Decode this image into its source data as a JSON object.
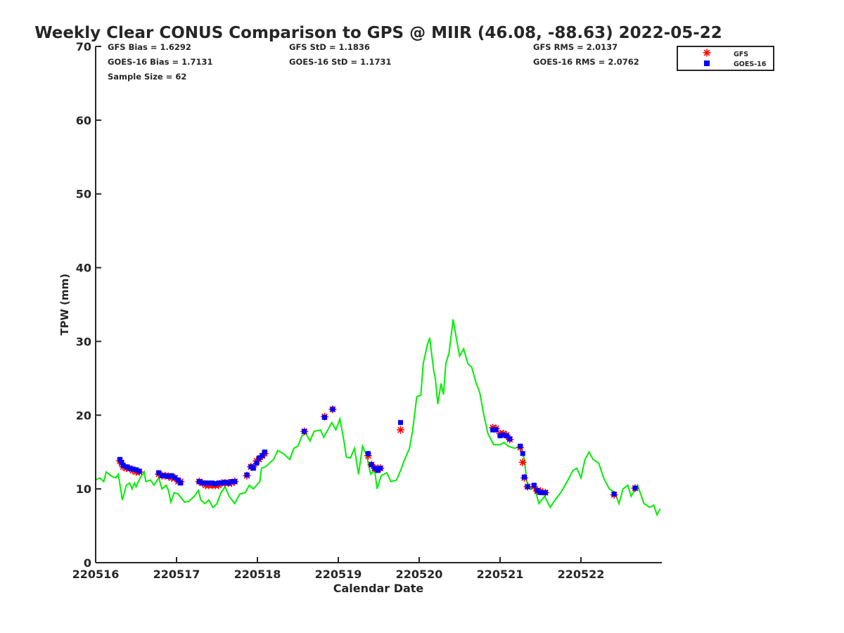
{
  "chart_data": {
    "type": "line",
    "title": "Weekly Clear CONUS Comparison to GPS @ MIIR (46.08, -88.63) 2022-05-22",
    "xlabel": "Calendar Date",
    "ylabel": "TPW (mm)",
    "xlim": [
      0,
      7
    ],
    "ylim": [
      0,
      70
    ],
    "x_ticks": [
      0,
      1,
      2,
      3,
      4,
      5,
      6
    ],
    "x_tick_labels": [
      "220516",
      "220517",
      "220518",
      "220519",
      "220520",
      "220521",
      "220522"
    ],
    "y_ticks": [
      0,
      10,
      20,
      30,
      40,
      50,
      60,
      70
    ],
    "y_tick_labels": [
      "0",
      "10",
      "20",
      "30",
      "40",
      "50",
      "60",
      "70"
    ],
    "x_units": "days since 220516",
    "stats": [
      {
        "label": "GFS Bias = 1.6292"
      },
      {
        "label": "GFS StD = 1.1836"
      },
      {
        "label": "GFS RMS = 2.0137"
      },
      {
        "label": "GOES-16 Bias = 1.7131"
      },
      {
        "label": "GOES-16 StD = 1.1731"
      },
      {
        "label": "GOES-16 RMS = 2.0762"
      },
      {
        "label": "Sample Size = 62"
      }
    ],
    "legend": {
      "placement": "top-right",
      "entries": [
        "GFS",
        "GOES-16"
      ]
    },
    "colors": {
      "gps": "#00ee00",
      "gfs": "#ff0000",
      "goes": "#0000ff"
    },
    "gps_line": [
      [
        0,
        11.2
      ],
      [
        0.05,
        11.5
      ],
      [
        0.1,
        11.0
      ],
      [
        0.13,
        12.3
      ],
      [
        0.2,
        11.7
      ],
      [
        0.25,
        11.5
      ],
      [
        0.28,
        12.0
      ],
      [
        0.33,
        8.5
      ],
      [
        0.38,
        10.5
      ],
      [
        0.42,
        10.8
      ],
      [
        0.45,
        10.0
      ],
      [
        0.48,
        10.8
      ],
      [
        0.5,
        10.3
      ],
      [
        0.55,
        11.5
      ],
      [
        0.6,
        12.3
      ],
      [
        0.62,
        11.0
      ],
      [
        0.68,
        11.2
      ],
      [
        0.72,
        10.5
      ],
      [
        0.78,
        11.5
      ],
      [
        0.82,
        10.0
      ],
      [
        0.87,
        10.5
      ],
      [
        0.9,
        9.8
      ],
      [
        0.93,
        8.2
      ],
      [
        0.97,
        9.5
      ],
      [
        1.02,
        9.3
      ],
      [
        1.1,
        8.2
      ],
      [
        1.15,
        8.3
      ],
      [
        1.22,
        9.0
      ],
      [
        1.27,
        9.8
      ],
      [
        1.3,
        8.5
      ],
      [
        1.35,
        8.0
      ],
      [
        1.4,
        8.5
      ],
      [
        1.45,
        7.5
      ],
      [
        1.5,
        8.0
      ],
      [
        1.55,
        9.5
      ],
      [
        1.6,
        10.3
      ],
      [
        1.65,
        9.0
      ],
      [
        1.72,
        8.0
      ],
      [
        1.78,
        9.3
      ],
      [
        1.85,
        9.5
      ],
      [
        1.9,
        10.5
      ],
      [
        1.95,
        10.0
      ],
      [
        2.03,
        11.0
      ],
      [
        2.05,
        12.8
      ],
      [
        2.1,
        13.0
      ],
      [
        2.15,
        13.5
      ],
      [
        2.2,
        14.0
      ],
      [
        2.25,
        15.2
      ],
      [
        2.32,
        14.8
      ],
      [
        2.4,
        14.0
      ],
      [
        2.45,
        15.5
      ],
      [
        2.5,
        15.8
      ],
      [
        2.55,
        17.2
      ],
      [
        2.6,
        17.5
      ],
      [
        2.65,
        16.5
      ],
      [
        2.7,
        17.8
      ],
      [
        2.78,
        18.0
      ],
      [
        2.82,
        17.0
      ],
      [
        2.87,
        18.0
      ],
      [
        2.92,
        19.0
      ],
      [
        2.97,
        18.0
      ],
      [
        3.02,
        19.5
      ],
      [
        3.07,
        16.5
      ],
      [
        3.1,
        14.3
      ],
      [
        3.15,
        14.2
      ],
      [
        3.2,
        15.5
      ],
      [
        3.25,
        12.0
      ],
      [
        3.3,
        15.8
      ],
      [
        3.35,
        14.5
      ],
      [
        3.4,
        12.0
      ],
      [
        3.45,
        12.5
      ],
      [
        3.48,
        10.0
      ],
      [
        3.53,
        11.8
      ],
      [
        3.6,
        12.2
      ],
      [
        3.65,
        11.0
      ],
      [
        3.72,
        11.2
      ],
      [
        3.77,
        12.5
      ],
      [
        3.82,
        14.0
      ],
      [
        3.88,
        15.5
      ],
      [
        3.92,
        18.0
      ],
      [
        3.97,
        22.5
      ],
      [
        4.02,
        22.7
      ],
      [
        4.05,
        27.0
      ],
      [
        4.1,
        29.5
      ],
      [
        4.13,
        30.5
      ],
      [
        4.18,
        26.0
      ],
      [
        4.2,
        25.0
      ],
      [
        4.23,
        21.5
      ],
      [
        4.27,
        24.3
      ],
      [
        4.3,
        22.8
      ],
      [
        4.33,
        27.0
      ],
      [
        4.37,
        28.5
      ],
      [
        4.42,
        33.0
      ],
      [
        4.45,
        31.0
      ],
      [
        4.5,
        28.0
      ],
      [
        4.55,
        29.0
      ],
      [
        4.6,
        27.0
      ],
      [
        4.65,
        26.5
      ],
      [
        4.7,
        24.5
      ],
      [
        4.75,
        23.0
      ],
      [
        4.8,
        20.0
      ],
      [
        4.85,
        17.5
      ],
      [
        4.92,
        16.0
      ],
      [
        5.0,
        16.0
      ],
      [
        5.05,
        16.3
      ],
      [
        5.1,
        15.8
      ],
      [
        5.18,
        15.5
      ],
      [
        5.25,
        15.8
      ],
      [
        5.3,
        14.0
      ],
      [
        5.33,
        11.0
      ],
      [
        5.38,
        10.0
      ],
      [
        5.42,
        10.5
      ],
      [
        5.48,
        8.0
      ],
      [
        5.55,
        9.0
      ],
      [
        5.62,
        7.5
      ],
      [
        5.68,
        8.5
      ],
      [
        5.75,
        9.5
      ],
      [
        5.82,
        10.8
      ],
      [
        5.9,
        12.5
      ],
      [
        5.95,
        12.8
      ],
      [
        6.0,
        11.5
      ],
      [
        6.05,
        14.0
      ],
      [
        6.1,
        15.0
      ],
      [
        6.15,
        14.0
      ],
      [
        6.22,
        13.5
      ],
      [
        6.28,
        11.5
      ],
      [
        6.35,
        10.0
      ],
      [
        6.42,
        9.5
      ],
      [
        6.47,
        8.0
      ],
      [
        6.52,
        10.0
      ],
      [
        6.58,
        10.5
      ],
      [
        6.62,
        9.0
      ],
      [
        6.7,
        10.5
      ],
      [
        6.78,
        8.0
      ],
      [
        6.85,
        7.5
      ],
      [
        6.9,
        7.8
      ],
      [
        6.94,
        6.5
      ],
      [
        6.98,
        7.3
      ]
    ],
    "samples": [
      [
        0.3,
        13.8,
        14.0
      ],
      [
        0.32,
        13.5,
        13.6
      ],
      [
        0.34,
        13.0,
        13.2
      ],
      [
        0.38,
        12.8,
        13.0
      ],
      [
        0.42,
        12.8,
        12.8
      ],
      [
        0.46,
        12.5,
        12.7
      ],
      [
        0.5,
        12.3,
        12.6
      ],
      [
        0.54,
        12.3,
        12.4
      ],
      [
        0.78,
        12.0,
        12.2
      ],
      [
        0.82,
        11.8,
        11.8
      ],
      [
        0.86,
        11.8,
        11.8
      ],
      [
        0.9,
        11.7,
        11.7
      ],
      [
        0.94,
        11.5,
        11.8
      ],
      [
        0.98,
        11.5,
        11.5
      ],
      [
        1.02,
        11.0,
        11.2
      ],
      [
        1.05,
        11.0,
        10.8
      ],
      [
        1.28,
        11.0,
        11.0
      ],
      [
        1.32,
        10.8,
        10.8
      ],
      [
        1.36,
        10.5,
        10.8
      ],
      [
        1.4,
        10.5,
        10.8
      ],
      [
        1.44,
        10.5,
        10.8
      ],
      [
        1.48,
        10.5,
        10.7
      ],
      [
        1.52,
        10.5,
        10.8
      ],
      [
        1.56,
        10.8,
        10.8
      ],
      [
        1.6,
        10.8,
        10.9
      ],
      [
        1.64,
        10.8,
        10.8
      ],
      [
        1.68,
        10.8,
        11.0
      ],
      [
        1.72,
        11.0,
        11.0
      ],
      [
        1.87,
        11.8,
        11.9
      ],
      [
        1.92,
        13.0,
        13.0
      ],
      [
        1.95,
        13.0,
        12.8
      ],
      [
        1.99,
        13.8,
        13.5
      ],
      [
        2.02,
        14.0,
        14.2
      ],
      [
        2.06,
        14.5,
        14.5
      ],
      [
        2.09,
        14.8,
        15.0
      ],
      [
        2.58,
        17.8,
        17.8
      ],
      [
        2.83,
        19.8,
        19.7
      ],
      [
        2.93,
        20.8,
        20.8
      ],
      [
        3.37,
        14.5,
        14.8
      ],
      [
        3.41,
        13.3,
        13.3
      ],
      [
        3.45,
        12.8,
        12.8
      ],
      [
        3.49,
        12.8,
        12.5
      ],
      [
        3.52,
        12.8,
        12.8
      ],
      [
        3.77,
        18.0,
        19.0
      ],
      [
        4.91,
        18.3,
        18.0
      ],
      [
        4.95,
        18.2,
        18.0
      ],
      [
        5.0,
        17.5,
        17.2
      ],
      [
        5.04,
        17.5,
        17.3
      ],
      [
        5.08,
        17.3,
        17.2
      ],
      [
        5.12,
        16.7,
        16.8
      ],
      [
        5.25,
        15.6,
        15.8
      ],
      [
        5.28,
        13.6,
        14.8
      ],
      [
        5.3,
        11.5,
        11.6
      ],
      [
        5.34,
        10.3,
        10.3
      ],
      [
        5.42,
        10.3,
        10.5
      ],
      [
        5.46,
        9.7,
        9.8
      ],
      [
        5.5,
        9.7,
        9.5
      ],
      [
        5.56,
        9.5,
        9.5
      ],
      [
        6.41,
        9.2,
        9.3
      ],
      [
        6.67,
        10.1,
        10.1
      ]
    ]
  }
}
